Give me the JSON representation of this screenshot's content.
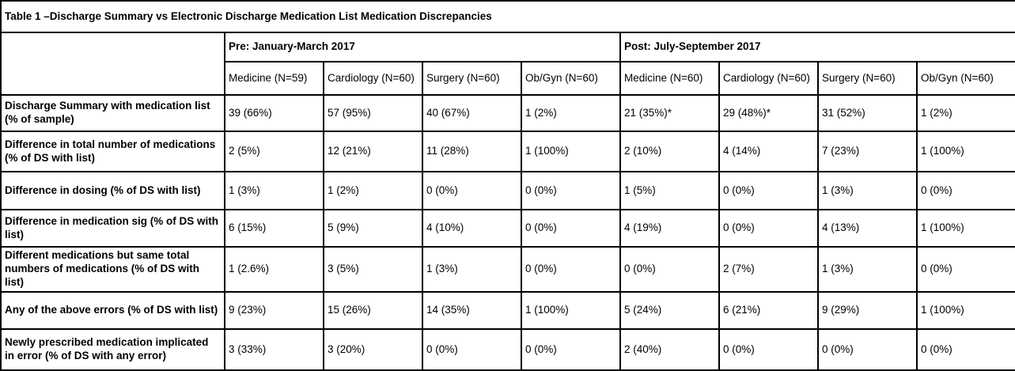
{
  "table": {
    "title": "Table 1 –Discharge Summary vs Electronic Discharge Medication List Medication Discrepancies",
    "colors": {
      "border": "#000000",
      "background": "#ffffff",
      "text": "#000000"
    },
    "group_headers": [
      {
        "label": "Pre: January-March 2017",
        "span": 4
      },
      {
        "label": "Post: July-September 2017",
        "span": 4
      }
    ],
    "column_headers": [
      "Medicine (N=59)",
      "Cardiology (N=60)",
      "Surgery (N=60)",
      "Ob/Gyn (N=60)",
      "Medicine (N=60)",
      "Cardiology (N=60)",
      "Surgery (N=60)",
      "Ob/Gyn (N=60)"
    ],
    "rows": [
      {
        "label": "Discharge Summary with medication list (% of sample)",
        "values": [
          "39 (66%)",
          "57 (95%)",
          "40 (67%)",
          "1 (2%)",
          "21 (35%)*",
          "29 (48%)*",
          "31 (52%)",
          "1 (2%)"
        ]
      },
      {
        "label": "Difference in total number of medications (% of DS with list)",
        "values": [
          "2 (5%)",
          "12 (21%)",
          "11 (28%)",
          "1 (100%)",
          "2 (10%)",
          "4 (14%)",
          "7 (23%)",
          "1 (100%)"
        ]
      },
      {
        "label": "Difference in dosing (% of DS with list)",
        "values": [
          "1 (3%)",
          "1 (2%)",
          "0 (0%)",
          "0 (0%)",
          "1 (5%)",
          "0 (0%)",
          "1 (3%)",
          "0 (0%)"
        ]
      },
      {
        "label": "Difference in medication sig (% of DS with list)",
        "values": [
          "6 (15%)",
          "5 (9%)",
          "4 (10%)",
          "0 (0%)",
          "4 (19%)",
          "0 (0%)",
          "4 (13%)",
          "1 (100%)"
        ]
      },
      {
        "label": "Different medications but same total numbers of medications (% of DS with list)",
        "values": [
          "1 (2.6%)",
          "3 (5%)",
          "1 (3%)",
          "0 (0%)",
          "0 (0%)",
          "2 (7%)",
          "1 (3%)",
          "0 (0%)"
        ]
      },
      {
        "label": "Any of the above errors (% of DS with list)",
        "values": [
          "9 (23%)",
          "15 (26%)",
          "14 (35%)",
          "1 (100%)",
          "5 (24%)",
          "6 (21%)",
          "9 (29%)",
          "1 (100%)"
        ]
      },
      {
        "label": "Newly prescribed medication implicated in error (% of DS with any error)",
        "values": [
          "3 (33%)",
          "3 (20%)",
          "0 (0%)",
          "0 (0%)",
          "2 (40%)",
          "0 (0%)",
          "0 (0%)",
          "0 (0%)"
        ]
      }
    ]
  }
}
